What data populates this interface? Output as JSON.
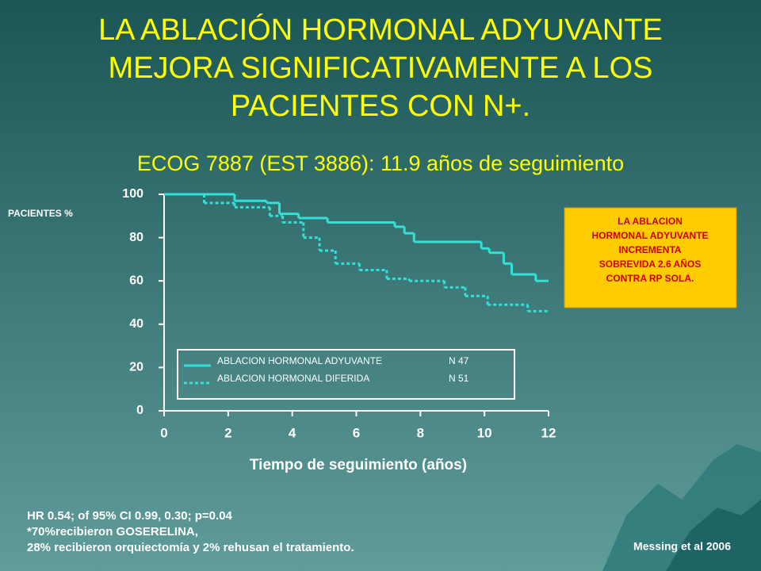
{
  "chart_data": {
    "type": "step",
    "title": [
      "LA ABLACIÓN HORMONAL ADYUVANTE",
      "MEJORA SIGNIFICATIVAMENTE A LOS",
      "PACIENTES CON N+."
    ],
    "subtitle": "ECOG 7887 (EST 3886): 11.9 años de seguimiento",
    "y_label": "PACIENTES %",
    "x_label": "Tiempo de seguimiento (años)",
    "xlim": [
      0,
      12
    ],
    "xticks": [
      0,
      2,
      4,
      6,
      8,
      10,
      12
    ],
    "ylim": [
      0,
      100
    ],
    "yticks": [
      0,
      20,
      40,
      60,
      80,
      100
    ],
    "series": [
      {
        "name": "ABLACION HORMONAL ADYUVANTE",
        "n_label": "N 47",
        "color": "#33e0d6",
        "line_style": "solid",
        "x": [
          0,
          2.2,
          3.2,
          3.6,
          4.2,
          5.1,
          7.2,
          7.5,
          7.8,
          9.9,
          10.15,
          10.6,
          10.85,
          11.6,
          12
        ],
        "values": [
          100,
          97,
          96,
          91,
          89,
          87,
          85,
          82,
          78,
          75,
          73,
          68,
          63,
          60,
          60
        ]
      },
      {
        "name": "ABLACION HORMONAL DIFERIDA",
        "n_label": "N 51",
        "color": "#33e0d6",
        "line_style": "dotted",
        "x": [
          0,
          1.25,
          2.2,
          3.3,
          3.7,
          4.35,
          4.85,
          5.35,
          6.1,
          6.95,
          7.65,
          8.75,
          9.4,
          10.1,
          11.35,
          12
        ],
        "values": [
          100,
          96,
          94,
          90,
          87,
          80,
          74,
          68,
          65,
          61,
          60,
          57,
          53,
          49,
          46,
          46
        ]
      }
    ],
    "annotation": [
      "LA ABLACION",
      "HORMONAL ADYUVANTE",
      "INCREMENTA",
      "SOBREVIDA 2.6 AÑOS",
      "CONTRA RP SOLA."
    ],
    "footnote": [
      "HR 0.54; of 95% CI 0.99, 0.30; p=0.04",
      "*70%recibieron GOSERELINA,",
      "28% recibieron orquiectomía y 2% rehusan el tratamiento."
    ],
    "source": "Messing et al 2006"
  }
}
